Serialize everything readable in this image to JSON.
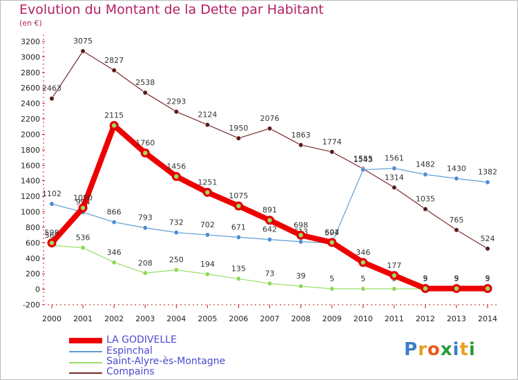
{
  "title": "Evolution du Montant de la Dette par Habitant",
  "subtitle": "(en €)",
  "chart_data": {
    "type": "line",
    "title": "Evolution du Montant de la Dette par Habitant",
    "subtitle": "(en €)",
    "x": [
      "2000",
      "2001",
      "2002",
      "2003",
      "2004",
      "2005",
      "2006",
      "2007",
      "2008",
      "2009",
      "2010",
      "2011",
      "2012",
      "2013",
      "2014"
    ],
    "y_ticks": [
      "-200",
      "0",
      "200",
      "400",
      "600",
      "800",
      "1000",
      "1200",
      "1400",
      "1600",
      "1800",
      "2000",
      "2200",
      "2400",
      "2600",
      "2800",
      "3000",
      "3200"
    ],
    "ylim": [
      -200,
      3200
    ],
    "grid": false,
    "legend_position": "bottom-left",
    "series": [
      {
        "name": "LA GODIVELLE",
        "color": "#ee0000",
        "values": [
          598,
          1050,
          2115,
          1760,
          1456,
          1251,
          1075,
          891,
          698,
          604,
          346,
          177,
          9,
          9,
          9
        ]
      },
      {
        "name": "Espinchal",
        "color": "#5c9bd1",
        "values": [
          1102,
          994,
          866,
          793,
          732,
          702,
          671,
          642,
          613,
          597,
          1543,
          1561,
          1482,
          1430,
          1382
        ]
      },
      {
        "name": "Saint-Alyre-ès-Montagne",
        "color": "#99dd66",
        "values": [
          565,
          536,
          346,
          208,
          250,
          194,
          135,
          73,
          39,
          5,
          5,
          5,
          5,
          5,
          5
        ]
      },
      {
        "name": "Compains",
        "color": "#7a2a2a",
        "values": [
          2463,
          3075,
          2827,
          2538,
          2293,
          2124,
          1950,
          2076,
          1863,
          1774,
          1555,
          1314,
          1035,
          765,
          524
        ]
      }
    ]
  },
  "legend": {
    "items": [
      {
        "label": "LA GODIVELLE",
        "color": "#ee0000"
      },
      {
        "label": "Espinchal",
        "color": "#5c9bd1"
      },
      {
        "label": "Saint-Alyre-ès-Montagne",
        "color": "#99dd66"
      },
      {
        "label": "Compains",
        "color": "#7a2a2a"
      }
    ]
  },
  "logo": {
    "text": "Proxiti",
    "letters": [
      "P",
      "r",
      "o",
      "x",
      "i",
      "t",
      "i"
    ],
    "colors": [
      "#3a7ec9",
      "#e8a020",
      "#e85a1a",
      "#2a9a3a",
      "#3a7ec9",
      "#e8a020",
      "#2a9a3a"
    ]
  }
}
